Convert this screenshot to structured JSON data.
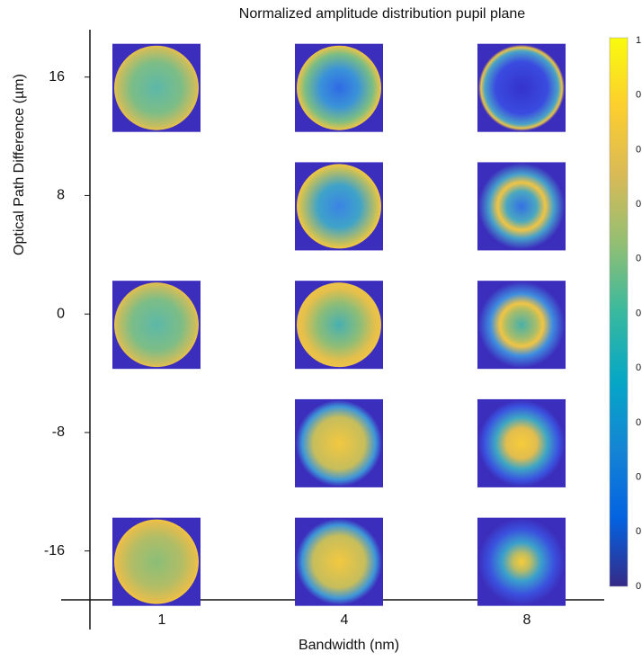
{
  "chart_data": {
    "type": "image-grid",
    "title": "Normalized amplitude distribution pupil plane",
    "x_label": "Bandwidth (nm)",
    "y_label": "Optical Path Difference (µm)",
    "xticks": [
      1,
      4,
      8
    ],
    "yticks": [
      16,
      8,
      0,
      -8,
      -16
    ],
    "ylim": [
      -19.3,
      19.2
    ],
    "tiles": [
      {
        "x": 1,
        "y": 16
      },
      {
        "x": 1,
        "y": 0
      },
      {
        "x": 1,
        "y": -16
      },
      {
        "x": 4,
        "y": 16
      },
      {
        "x": 4,
        "y": 8
      },
      {
        "x": 4,
        "y": 0
      },
      {
        "x": 4,
        "y": -8
      },
      {
        "x": 4,
        "y": -16
      },
      {
        "x": 8,
        "y": 16
      },
      {
        "x": 8,
        "y": 8
      },
      {
        "x": 8,
        "y": 0
      },
      {
        "x": 8,
        "y": -8
      },
      {
        "x": 8,
        "y": -16
      }
    ],
    "colorbar_labels": [
      "1",
      "0",
      "0",
      "0",
      "0",
      "0",
      "0",
      "0",
      "0",
      "0",
      "0"
    ]
  }
}
